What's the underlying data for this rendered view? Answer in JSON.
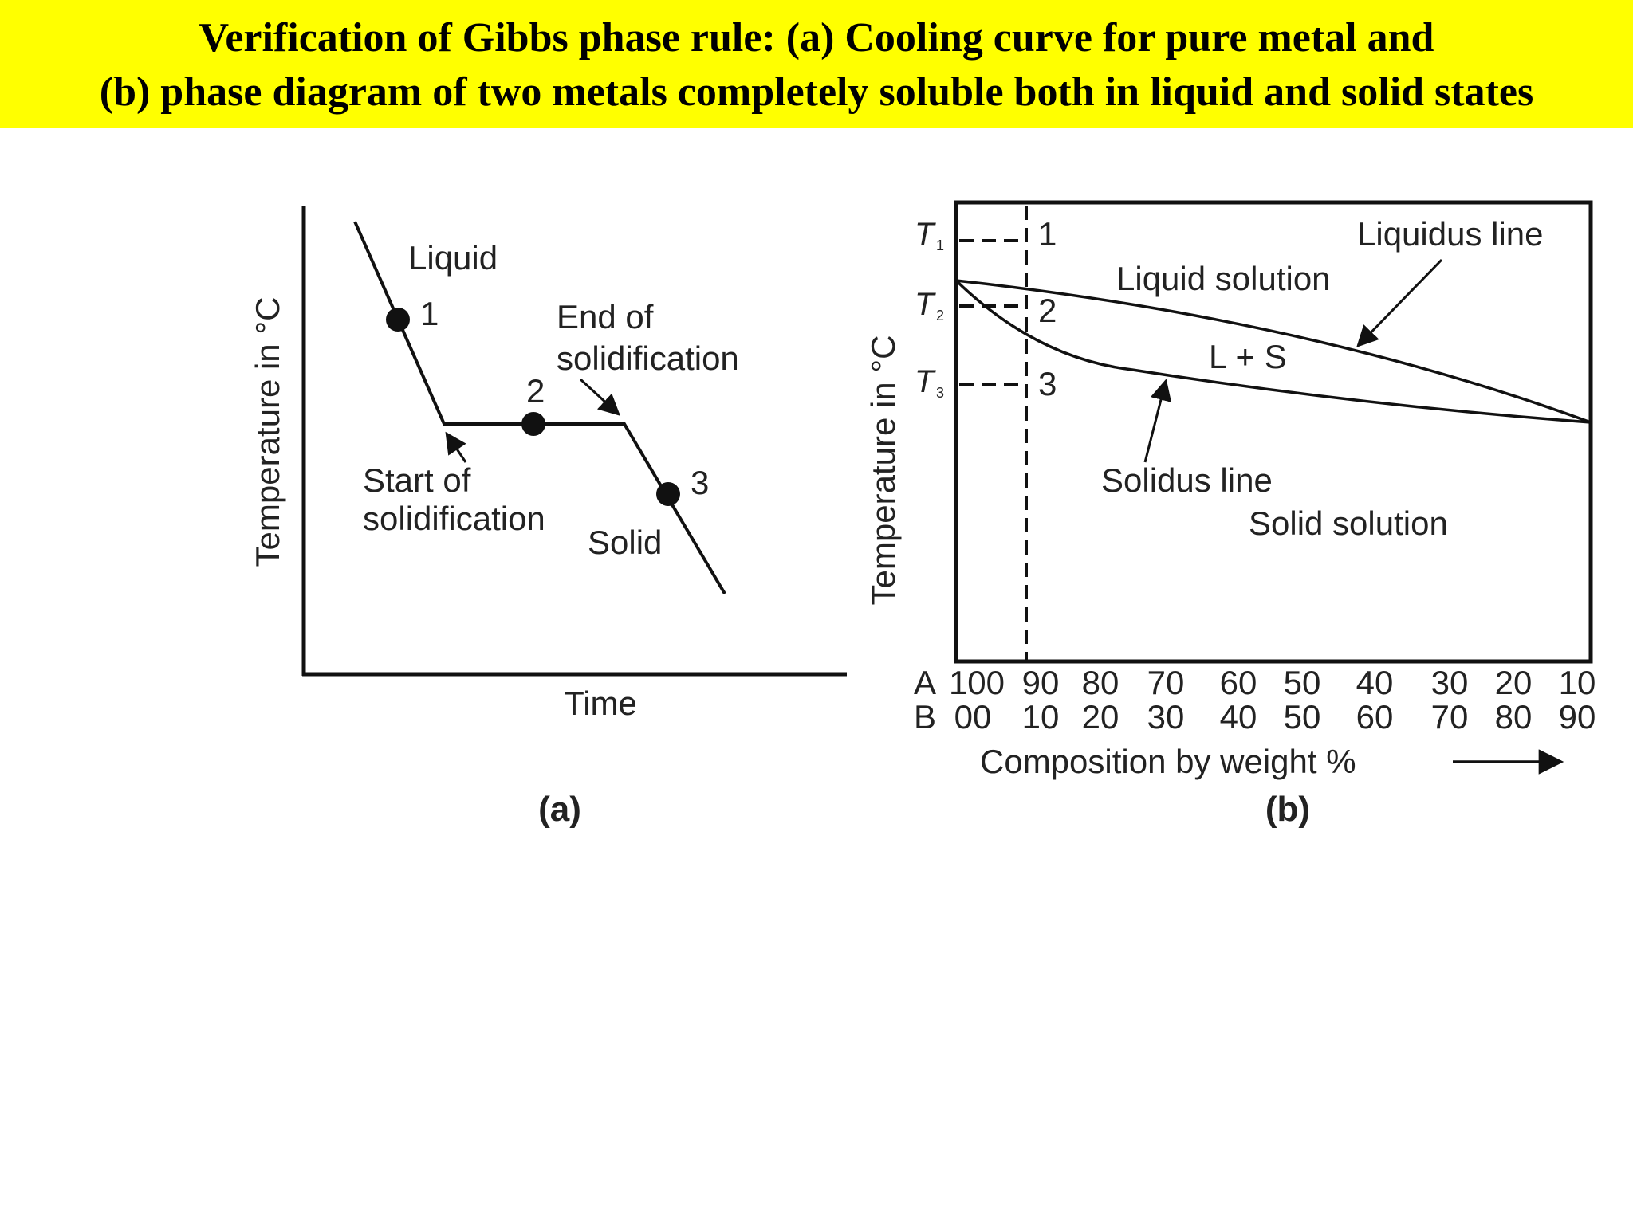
{
  "title": {
    "line1": "Verification of Gibbs phase rule: (a) Cooling curve for pure metal and",
    "line2": "(b) phase diagram of two metals completely soluble both in liquid and solid states"
  },
  "colors": {
    "banner": "#ffff00",
    "ink": "#111111"
  },
  "diagram_a": {
    "ylabel": "Temperature in °C",
    "xlabel": "Time",
    "caption": "(a)",
    "labels": {
      "liquid": "Liquid",
      "solid": "Solid",
      "start_line1": "Start of",
      "start_line2": "solidification",
      "end_line1": "End of",
      "end_line2": "solidification"
    },
    "points": [
      "1",
      "2",
      "3"
    ]
  },
  "diagram_b": {
    "ylabel": "Temperature in °C",
    "xlabel": "Composition by  weight %",
    "caption": "(b)",
    "temps": {
      "t1": "T",
      "t1_sub": "1",
      "t2": "T",
      "t2_sub": "2",
      "t3": "T",
      "t3_sub": "3"
    },
    "points": [
      "1",
      "2",
      "3"
    ],
    "labels": {
      "liquidus": "Liquidus line",
      "liquid_solution": "Liquid solution",
      "ls": "L + S",
      "solidus": "Solidus line",
      "solid_solution": "Solid solution"
    },
    "row_a": {
      "name": "A",
      "ticks": [
        "100",
        "90",
        "80",
        "70",
        "60",
        "50",
        "40",
        "30",
        "20",
        "10"
      ]
    },
    "row_b": {
      "name": "B",
      "ticks": [
        "00",
        "10",
        "20",
        "30",
        "40",
        "50",
        "60",
        "70",
        "80",
        "90"
      ]
    }
  }
}
